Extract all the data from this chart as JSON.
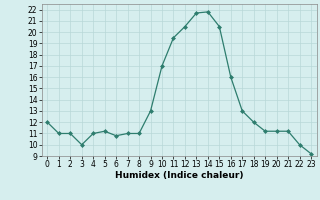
{
  "x": [
    0,
    1,
    2,
    3,
    4,
    5,
    6,
    7,
    8,
    9,
    10,
    11,
    12,
    13,
    14,
    15,
    16,
    17,
    18,
    19,
    20,
    21,
    22,
    23
  ],
  "y": [
    12,
    11,
    11,
    10,
    11,
    11.2,
    10.8,
    11,
    11,
    13,
    17,
    19.5,
    20.5,
    21.7,
    21.8,
    20.5,
    16,
    13,
    12,
    11.2,
    11.2,
    11.2,
    10,
    9.2
  ],
  "line_color": "#2e7d6e",
  "marker": "D",
  "marker_size": 2.0,
  "background_color": "#d6eeee",
  "grid_color": "#b8d8d8",
  "xlabel": "Humidex (Indice chaleur)",
  "xlim": [
    -0.5,
    23.5
  ],
  "ylim": [
    9,
    22.5
  ],
  "yticks": [
    9,
    10,
    11,
    12,
    13,
    14,
    15,
    16,
    17,
    18,
    19,
    20,
    21,
    22
  ],
  "xticks": [
    0,
    1,
    2,
    3,
    4,
    5,
    6,
    7,
    8,
    9,
    10,
    11,
    12,
    13,
    14,
    15,
    16,
    17,
    18,
    19,
    20,
    21,
    22,
    23
  ],
  "label_fontsize": 6.5,
  "tick_fontsize": 5.5
}
